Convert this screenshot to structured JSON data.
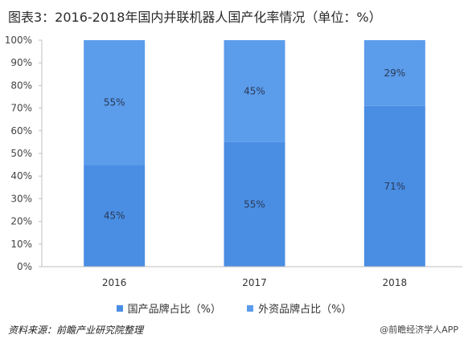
{
  "title": "图表3：2016-2018年国内并联机器人国产化率情况（单位：%）",
  "colors": {
    "domestic": "#4a8ee4",
    "foreign": "#5b9ceb"
  },
  "chart_data": {
    "type": "bar",
    "stacked": true,
    "categories": [
      "2016",
      "2017",
      "2018"
    ],
    "series": [
      {
        "name": "国产品牌占比（%）",
        "values": [
          45,
          55,
          71
        ],
        "labels": [
          "45%",
          "55%",
          "71%"
        ]
      },
      {
        "name": "外资品牌占比（%）",
        "values": [
          55,
          45,
          29
        ],
        "labels": [
          "55%",
          "45%",
          "29%"
        ]
      }
    ],
    "ylim": [
      0,
      100
    ],
    "yticks": [
      "0%",
      "10%",
      "20%",
      "30%",
      "40%",
      "50%",
      "60%",
      "70%",
      "80%",
      "90%",
      "100%"
    ],
    "grid": false,
    "legend_position": "bottom"
  },
  "source_label": "资料来源：前瞻产业研究院整理",
  "footer_brand": "@前瞻经济学人APP"
}
